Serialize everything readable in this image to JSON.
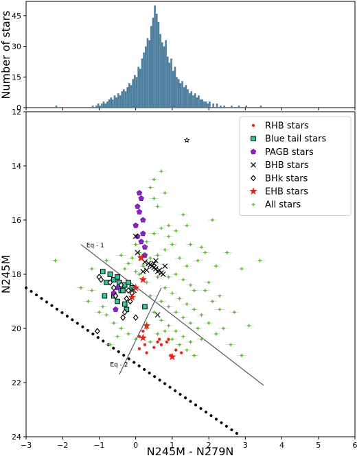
{
  "chart_data": [
    {
      "type": "bar",
      "ylabel": "Number of stars",
      "xlim": [
        -3,
        6
      ],
      "ylim": [
        0,
        52
      ],
      "yticks": [
        0,
        15,
        30,
        45
      ],
      "color": "#4f7f9f",
      "bin_width": 0.05,
      "bins": [
        [
          -2.2,
          1
        ],
        [
          -1.2,
          1
        ],
        [
          -1.1,
          1
        ],
        [
          -1.05,
          2
        ],
        [
          -1.0,
          1
        ],
        [
          -0.95,
          2
        ],
        [
          -0.9,
          3
        ],
        [
          -0.85,
          2
        ],
        [
          -0.8,
          3
        ],
        [
          -0.75,
          4
        ],
        [
          -0.7,
          5
        ],
        [
          -0.65,
          4
        ],
        [
          -0.6,
          6
        ],
        [
          -0.55,
          5
        ],
        [
          -0.5,
          7
        ],
        [
          -0.45,
          6
        ],
        [
          -0.4,
          8
        ],
        [
          -0.35,
          9
        ],
        [
          -0.3,
          8
        ],
        [
          -0.25,
          10
        ],
        [
          -0.2,
          12
        ],
        [
          -0.15,
          11
        ],
        [
          -0.1,
          14
        ],
        [
          -0.05,
          16
        ],
        [
          0.0,
          15
        ],
        [
          0.05,
          20
        ],
        [
          0.1,
          19
        ],
        [
          0.15,
          24
        ],
        [
          0.2,
          27
        ],
        [
          0.25,
          30
        ],
        [
          0.3,
          34
        ],
        [
          0.35,
          33
        ],
        [
          0.4,
          40
        ],
        [
          0.45,
          44
        ],
        [
          0.5,
          50
        ],
        [
          0.55,
          46
        ],
        [
          0.6,
          42
        ],
        [
          0.65,
          36
        ],
        [
          0.7,
          32
        ],
        [
          0.75,
          30
        ],
        [
          0.8,
          33
        ],
        [
          0.85,
          25
        ],
        [
          0.9,
          22
        ],
        [
          0.95,
          24
        ],
        [
          1.0,
          18
        ],
        [
          1.05,
          20
        ],
        [
          1.1,
          15
        ],
        [
          1.15,
          14
        ],
        [
          1.2,
          12
        ],
        [
          1.25,
          13
        ],
        [
          1.3,
          10
        ],
        [
          1.35,
          11
        ],
        [
          1.4,
          9
        ],
        [
          1.45,
          7
        ],
        [
          1.5,
          8
        ],
        [
          1.55,
          6
        ],
        [
          1.6,
          7
        ],
        [
          1.65,
          5
        ],
        [
          1.7,
          6
        ],
        [
          1.75,
          4
        ],
        [
          1.8,
          4
        ],
        [
          1.85,
          3
        ],
        [
          1.9,
          3
        ],
        [
          1.95,
          2
        ],
        [
          2.0,
          3
        ],
        [
          2.1,
          2
        ],
        [
          2.2,
          2
        ],
        [
          2.3,
          1
        ],
        [
          2.4,
          1
        ],
        [
          2.6,
          1
        ],
        [
          2.8,
          1
        ],
        [
          3.0,
          1
        ],
        [
          3.4,
          1
        ]
      ]
    },
    {
      "type": "scatter",
      "xlabel": "N245M - N279N",
      "ylabel": "N245M",
      "xlim": [
        -3,
        6
      ],
      "ylim": [
        24,
        12
      ],
      "xticks": [
        -3,
        -2,
        -1,
        0,
        1,
        2,
        3,
        4,
        5,
        6
      ],
      "yticks": [
        12,
        14,
        16,
        18,
        20,
        22,
        24
      ],
      "legend_position": "top-right",
      "series": [
        {
          "name": "RHB stars",
          "marker": "dot",
          "color": "#e8241c",
          "points": [
            [
              0.1,
              20.3
            ],
            [
              0.2,
              20.1
            ],
            [
              0.25,
              20.6
            ],
            [
              0.3,
              20.9
            ],
            [
              0.5,
              20.7
            ],
            [
              0.6,
              20.5
            ],
            [
              0.65,
              20.4
            ],
            [
              0.7,
              20.6
            ],
            [
              0.85,
              20.5
            ],
            [
              0.9,
              20.4
            ],
            [
              0.95,
              21.0
            ],
            [
              1.0,
              21.05
            ],
            [
              1.1,
              20.8
            ],
            [
              1.25,
              20.9
            ],
            [
              0.1,
              20.75
            ]
          ]
        },
        {
          "name": "Blue tail stars",
          "marker": "square",
          "color": "#2ec9a1",
          "points": [
            [
              -0.9,
              17.9
            ],
            [
              -0.8,
              18.3
            ],
            [
              -0.7,
              18.0
            ],
            [
              -0.6,
              18.2
            ],
            [
              -0.5,
              18.1
            ],
            [
              -0.45,
              18.3
            ],
            [
              -0.4,
              18.6
            ],
            [
              -0.3,
              18.4
            ],
            [
              -0.2,
              18.3
            ],
            [
              -0.1,
              18.5
            ],
            [
              -0.6,
              18.8
            ],
            [
              -0.85,
              18.8
            ],
            [
              -0.3,
              19.1
            ],
            [
              -0.25,
              19.3
            ],
            [
              0.25,
              19.2
            ],
            [
              -0.5,
              19.0
            ],
            [
              -0.35,
              18.6
            ]
          ]
        },
        {
          "name": "PAGB stars",
          "marker": "pentagon",
          "color": "#8b22c9",
          "points": [
            [
              0.1,
              15.0
            ],
            [
              0.15,
              15.2
            ],
            [
              0.05,
              15.5
            ],
            [
              0.1,
              15.7
            ],
            [
              0.2,
              16.0
            ],
            [
              0.0,
              16.2
            ],
            [
              0.2,
              16.5
            ],
            [
              0.05,
              16.6
            ],
            [
              0.15,
              16.8
            ],
            [
              0.25,
              17.0
            ],
            [
              0.25,
              17.3
            ],
            [
              -0.5,
              18.5
            ],
            [
              -0.6,
              18.7
            ],
            [
              -0.55,
              19.3
            ]
          ]
        },
        {
          "name": "BHB stars",
          "marker": "x",
          "color": "#000000",
          "points": [
            [
              0.0,
              16.6
            ],
            [
              0.05,
              17.2
            ],
            [
              0.15,
              17.4
            ],
            [
              0.25,
              17.55
            ],
            [
              0.35,
              17.6
            ],
            [
              0.4,
              17.65
            ],
            [
              0.45,
              17.7
            ],
            [
              0.5,
              17.75
            ],
            [
              0.55,
              17.8
            ],
            [
              0.6,
              17.9
            ],
            [
              0.65,
              17.85
            ],
            [
              0.7,
              17.95
            ],
            [
              0.75,
              18.0
            ],
            [
              0.3,
              17.85
            ],
            [
              0.5,
              17.6
            ],
            [
              0.55,
              17.5
            ],
            [
              0.2,
              17.9
            ],
            [
              -0.05,
              18.6
            ],
            [
              0.6,
              19.5
            ],
            [
              0.8,
              17.7
            ]
          ]
        },
        {
          "name": "BHk stars",
          "marker": "diamond",
          "color": "#000000",
          "points": [
            [
              -1.0,
              18.1
            ],
            [
              -0.95,
              18.2
            ],
            [
              -0.7,
              18.3
            ],
            [
              -0.6,
              18.5
            ],
            [
              -0.55,
              18.8
            ],
            [
              -0.4,
              18.4
            ],
            [
              -0.3,
              19.4
            ],
            [
              -0.35,
              19.6
            ],
            [
              -0.15,
              19.0
            ],
            [
              0.0,
              19.6
            ],
            [
              -1.05,
              20.1
            ],
            [
              -0.25,
              18.9
            ],
            [
              -0.1,
              18.7
            ],
            [
              -0.2,
              18.6
            ]
          ]
        },
        {
          "name": "EHB stars",
          "marker": "star",
          "color": "#e8241c",
          "points": [
            [
              0.2,
              18.2
            ],
            [
              -0.1,
              18.85
            ],
            [
              0.0,
              18.5
            ],
            [
              0.15,
              17.4
            ],
            [
              0.3,
              19.9
            ],
            [
              0.2,
              20.35
            ],
            [
              1.0,
              21.05
            ]
          ]
        },
        {
          "name": "All stars",
          "marker": "plus",
          "color": "#5cb82c",
          "points": [
            [
              0.5,
              14.5
            ],
            [
              0.6,
              15.5
            ],
            [
              0.4,
              14.8
            ],
            [
              0.9,
              16.2
            ],
            [
              1.3,
              15.8
            ],
            [
              1.5,
              16.9
            ],
            [
              2.1,
              16.0
            ],
            [
              2.5,
              17.2
            ],
            [
              2.9,
              17.8
            ],
            [
              3.4,
              17.5
            ],
            [
              1.8,
              17.0
            ],
            [
              1.2,
              17.4
            ],
            [
              2.0,
              18.3
            ],
            [
              2.3,
              18.8
            ],
            [
              2.7,
              19.4
            ],
            [
              3.1,
              19.9
            ],
            [
              2.6,
              20.6
            ],
            [
              2.9,
              21.0
            ],
            [
              -2.2,
              17.5
            ],
            [
              -1.3,
              19.0
            ],
            [
              -1.5,
              18.5
            ],
            [
              -1.2,
              17.8
            ],
            [
              -0.8,
              17.5
            ],
            [
              -0.4,
              17.3
            ],
            [
              -0.2,
              17.6
            ],
            [
              0.0,
              17.9
            ],
            [
              0.1,
              18.0
            ],
            [
              0.3,
              18.3
            ],
            [
              0.6,
              18.1
            ],
            [
              0.9,
              18.1
            ],
            [
              1.1,
              18.0
            ],
            [
              1.3,
              18.2
            ],
            [
              1.5,
              18.4
            ],
            [
              0.8,
              18.5
            ],
            [
              1.0,
              18.7
            ],
            [
              1.2,
              18.9
            ],
            [
              1.4,
              19.1
            ],
            [
              1.6,
              19.3
            ],
            [
              1.8,
              19.5
            ],
            [
              0.4,
              18.8
            ],
            [
              0.7,
              19.0
            ],
            [
              0.9,
              19.2
            ],
            [
              1.1,
              19.4
            ],
            [
              1.3,
              19.6
            ],
            [
              1.5,
              19.8
            ],
            [
              1.7,
              20.0
            ],
            [
              0.5,
              19.4
            ],
            [
              0.7,
              19.7
            ],
            [
              0.9,
              19.9
            ],
            [
              1.1,
              20.1
            ],
            [
              1.3,
              20.3
            ],
            [
              1.5,
              20.5
            ],
            [
              0.3,
              20.0
            ],
            [
              0.6,
              20.2
            ],
            [
              0.8,
              20.1
            ],
            [
              1.0,
              20.4
            ],
            [
              1.2,
              20.6
            ],
            [
              1.4,
              20.8
            ],
            [
              1.6,
              21.0
            ],
            [
              0.4,
              20.5
            ],
            [
              -0.8,
              19.5
            ],
            [
              -0.6,
              19.8
            ],
            [
              -0.9,
              19.2
            ],
            [
              -0.4,
              20.0
            ],
            [
              -0.2,
              20.2
            ],
            [
              0.0,
              20.4
            ],
            [
              -0.7,
              20.6
            ],
            [
              -0.5,
              20.3
            ],
            [
              -1.2,
              18.6
            ],
            [
              -1.0,
              19.4
            ],
            [
              -0.3,
              17.8
            ],
            [
              0.2,
              17.7
            ],
            [
              0.4,
              17.4
            ],
            [
              0.6,
              17.3
            ],
            [
              0.8,
              17.1
            ],
            [
              1.0,
              16.9
            ],
            [
              0.3,
              16.8
            ],
            [
              0.5,
              16.5
            ],
            [
              0.7,
              16.3
            ],
            [
              0.9,
              16.6
            ],
            [
              0.1,
              17.2
            ],
            [
              0.0,
              16.9
            ],
            [
              -0.1,
              17.4
            ],
            [
              1.9,
              18.6
            ],
            [
              2.1,
              19.0
            ],
            [
              2.3,
              19.3
            ],
            [
              2.0,
              19.8
            ],
            [
              2.2,
              20.2
            ],
            [
              1.8,
              20.4
            ],
            [
              2.4,
              20.0
            ],
            [
              1.6,
              18.6
            ],
            [
              1.4,
              17.7
            ],
            [
              1.7,
              17.5
            ],
            [
              1.9,
              17.2
            ],
            [
              2.2,
              17.7
            ],
            [
              0.5,
              15.2
            ],
            [
              0.8,
              15.0
            ],
            [
              0.7,
              14.2
            ],
            [
              1.1,
              16.4
            ],
            [
              1.4,
              16.2
            ]
          ]
        },
        {
          "name": "",
          "marker": "open-star",
          "color": "#000000",
          "points": [
            [
              1.4,
              13.05
            ]
          ]
        }
      ],
      "annotations": [
        {
          "text": "Eq - 1",
          "x": -1.35,
          "y": 17.0
        },
        {
          "text": "Eq - 2",
          "x": -0.7,
          "y": 21.4
        }
      ],
      "lines": [
        {
          "name": "Eq - 1",
          "x": [
            -1.5,
            3.5
          ],
          "y": [
            16.9,
            22.1
          ]
        },
        {
          "name": "Eq - 2",
          "x": [
            -0.45,
            0.7
          ],
          "y": [
            21.7,
            18.5
          ]
        },
        {
          "name": "detection-limit",
          "x": [
            -3.0,
            2.9
          ],
          "y": [
            18.5,
            24.0
          ]
        }
      ]
    }
  ]
}
